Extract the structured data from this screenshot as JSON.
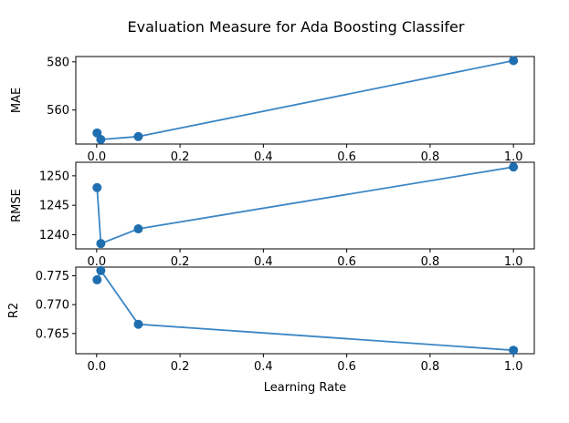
{
  "title": "Evaluation Measure for Ada Boosting Classifer",
  "colors": {
    "line": "#3b86c5",
    "marker": "#1f6fb0",
    "axis": "#000000"
  },
  "chart_data": [
    {
      "type": "line",
      "ylabel": "MAE",
      "xlabel": "",
      "x": [
        0.001,
        0.01,
        0.1,
        1.0
      ],
      "y": [
        550.5,
        547.8,
        549.0,
        580.5
      ],
      "xlim": [
        -0.05,
        1.05
      ],
      "ylim": [
        545.9,
        582.2
      ],
      "xticks": [
        "0.0",
        "0.2",
        "0.4",
        "0.6",
        "0.8",
        "1.0"
      ],
      "yticks": [
        "560",
        "580"
      ],
      "marker": "circle",
      "grid": false
    },
    {
      "type": "line",
      "ylabel": "RMSE",
      "xlabel": "",
      "x": [
        0.001,
        0.01,
        0.1,
        1.0
      ],
      "y": [
        1248.0,
        1238.5,
        1241.0,
        1251.5
      ],
      "xlim": [
        -0.05,
        1.05
      ],
      "ylim": [
        1237.6,
        1252.3
      ],
      "xticks": [
        "0.0",
        "0.2",
        "0.4",
        "0.6",
        "0.8",
        "1.0"
      ],
      "yticks": [
        "1240",
        "1245",
        "1250"
      ],
      "marker": "circle",
      "grid": false
    },
    {
      "type": "line",
      "ylabel": "R2",
      "xlabel": "Learning Rate",
      "x": [
        0.001,
        0.01,
        0.1,
        1.0
      ],
      "y": [
        0.7743,
        0.7759,
        0.7666,
        0.7621
      ],
      "xlim": [
        -0.05,
        1.05
      ],
      "ylim": [
        0.7615,
        0.7765
      ],
      "xticks": [
        "0.0",
        "0.2",
        "0.4",
        "0.6",
        "0.8",
        "1.0"
      ],
      "yticks": [
        "0.765",
        "0.770",
        "0.775"
      ],
      "marker": "circle",
      "grid": false
    }
  ]
}
